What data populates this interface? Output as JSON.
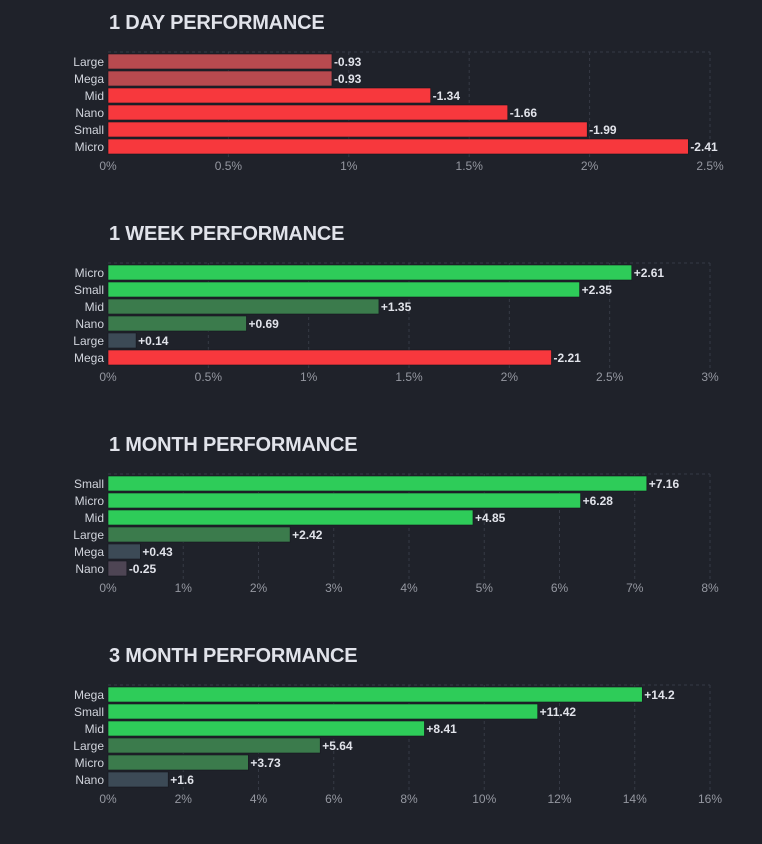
{
  "colors": {
    "background": "#1f222a",
    "grid": "#363a45",
    "negative_strong": "#f7383d",
    "negative_weak": "#b84a4f",
    "positive_strong": "#2ecc59",
    "positive_medium": "#3b7b4c",
    "positive_weak": "#3c4a56",
    "neutral_negative": "#4e4554"
  },
  "chart_data": [
    {
      "type": "bar",
      "orientation": "horizontal",
      "title": "1 DAY PERFORMANCE",
      "categories": [
        "Large",
        "Mega",
        "Mid",
        "Nano",
        "Small",
        "Micro"
      ],
      "values": [
        -0.93,
        -0.93,
        -1.34,
        -1.66,
        -1.99,
        -2.41
      ],
      "value_labels": [
        "-0.93",
        "-0.93",
        "-1.34",
        "-1.66",
        "-1.99",
        "-2.41"
      ],
      "bar_colors": [
        "#b84a4f",
        "#b84a4f",
        "#f7383d",
        "#f7383d",
        "#f7383d",
        "#f7383d"
      ],
      "xlim": [
        0,
        2.5
      ],
      "x_ticks": [
        0,
        0.5,
        1,
        1.5,
        2,
        2.5
      ],
      "x_tick_labels": [
        "0%",
        "0.5%",
        "1%",
        "1.5%",
        "2%",
        "2.5%"
      ],
      "grid": true
    },
    {
      "type": "bar",
      "orientation": "horizontal",
      "title": "1 WEEK PERFORMANCE",
      "categories": [
        "Micro",
        "Small",
        "Mid",
        "Nano",
        "Large",
        "Mega"
      ],
      "values": [
        2.61,
        2.35,
        1.35,
        0.69,
        0.14,
        -2.21
      ],
      "value_labels": [
        "+2.61",
        "+2.35",
        "+1.35",
        "+0.69",
        "+0.14",
        "-2.21"
      ],
      "bar_colors": [
        "#2ecc59",
        "#2ecc59",
        "#3b7b4c",
        "#3b7b4c",
        "#3c4a56",
        "#f7383d"
      ],
      "xlim": [
        0,
        3
      ],
      "x_ticks": [
        0,
        0.5,
        1,
        1.5,
        2,
        2.5,
        3
      ],
      "x_tick_labels": [
        "0%",
        "0.5%",
        "1%",
        "1.5%",
        "2%",
        "2.5%",
        "3%"
      ],
      "grid": true
    },
    {
      "type": "bar",
      "orientation": "horizontal",
      "title": "1 MONTH PERFORMANCE",
      "categories": [
        "Small",
        "Micro",
        "Mid",
        "Large",
        "Mega",
        "Nano"
      ],
      "values": [
        7.16,
        6.28,
        4.85,
        2.42,
        0.43,
        -0.25
      ],
      "value_labels": [
        "+7.16",
        "+6.28",
        "+4.85",
        "+2.42",
        "+0.43",
        "-0.25"
      ],
      "bar_colors": [
        "#2ecc59",
        "#2ecc59",
        "#2ecc59",
        "#3b7b4c",
        "#3c4a56",
        "#4e4554"
      ],
      "xlim": [
        0,
        8
      ],
      "x_ticks": [
        0,
        1,
        2,
        3,
        4,
        5,
        6,
        7,
        8
      ],
      "x_tick_labels": [
        "0%",
        "1%",
        "2%",
        "3%",
        "4%",
        "5%",
        "6%",
        "7%",
        "8%"
      ],
      "grid": true
    },
    {
      "type": "bar",
      "orientation": "horizontal",
      "title": "3 MONTH PERFORMANCE",
      "categories": [
        "Mega",
        "Small",
        "Mid",
        "Large",
        "Micro",
        "Nano"
      ],
      "values": [
        14.2,
        11.42,
        8.41,
        5.64,
        3.73,
        1.6
      ],
      "value_labels": [
        "+14.2",
        "+11.42",
        "+8.41",
        "+5.64",
        "+3.73",
        "+1.6"
      ],
      "bar_colors": [
        "#2ecc59",
        "#2ecc59",
        "#2ecc59",
        "#3b7b4c",
        "#3b7b4c",
        "#3c4a56"
      ],
      "xlim": [
        0,
        16
      ],
      "x_ticks": [
        0,
        2,
        4,
        6,
        8,
        10,
        12,
        14,
        16
      ],
      "x_tick_labels": [
        "0%",
        "2%",
        "4%",
        "6%",
        "8%",
        "10%",
        "12%",
        "14%",
        "16%"
      ],
      "grid": true
    }
  ]
}
